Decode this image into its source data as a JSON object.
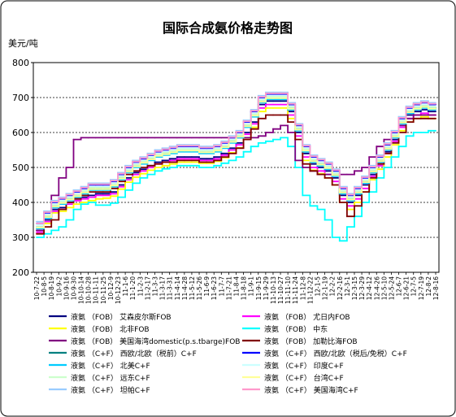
{
  "chart_data": {
    "type": "line",
    "title": "国际合成氨价格走势图",
    "ylabel": "美元/吨",
    "xlabel": "",
    "ylim": [
      200,
      800
    ],
    "yticks": [
      200,
      300,
      400,
      500,
      600,
      700,
      800
    ],
    "grid": "horizontal-dashed",
    "legend_placement": "bottom",
    "x": [
      "10-7-22",
      "10-8-5",
      "10-8-19",
      "10-9-2",
      "10-9-16",
      "10-9-30",
      "10-10-14",
      "10-10-28",
      "10-11-11",
      "10-11-25",
      "10-12-9",
      "10-12-23",
      "11-1-6",
      "11-1-20",
      "11-2-3",
      "11-2-17",
      "11-3-3",
      "11-3-17",
      "11-3-31",
      "11-4-14",
      "11-4-28",
      "11-5-12",
      "11-5-26",
      "11-6-9",
      "11-6-23",
      "11-7-7",
      "11-7-21",
      "11-8-4",
      "11-8-18",
      "11-9-1",
      "11-9-15",
      "11-9-29",
      "11-10-13",
      "11-10-27",
      "11-11-10",
      "11-11-24",
      "11-12-8",
      "11-12-22",
      "12-1-5",
      "12-1-19",
      "12-2-2",
      "12-2-16",
      "12-3-1",
      "12-3-15",
      "12-3-29",
      "12-4-12",
      "12-4-26",
      "12-5-10",
      "12-5-24",
      "12-6-7",
      "12-6-21",
      "12-7-5",
      "12-7-19",
      "12-8-2",
      "12-8-16"
    ],
    "x_tick_labels": [
      "10-7-22",
      "10-8-5",
      "10-8-19",
      "10-9-2",
      "10-9-16",
      "10-9-30",
      "10-10-14",
      "10-10-28",
      "10-11-11",
      "10-11-25",
      "10-12-9",
      "10-12-23",
      "11-1-6",
      "11-1-20",
      "11-2-3",
      "11-2-17",
      "11-3-3",
      "11-3-17",
      "11-3-31",
      "11-4-14",
      "11-4-28",
      "11-5-12",
      "11-5-26",
      "11-6-9",
      "11-6-23",
      "11-7-7",
      "11-7-21",
      "11-8-4",
      "11-8-18",
      "11-9-1",
      "11-9-15",
      "11-9-29",
      "11-10-13",
      "11-10-27",
      "11-11-10",
      "11-11-24",
      "11-12-8",
      "11-12-22",
      "12-1-5",
      "12-1-19",
      "12-2-2",
      "12-2-16",
      "12-3-1",
      "12-3-15",
      "12-3-29",
      "12-4-12",
      "12-4-26",
      "12-5-10",
      "12-5-24",
      "12-6-7",
      "12-6-21",
      "12-7-5",
      "12-7-19",
      "12-8-2",
      "12-8-16"
    ],
    "series": [
      {
        "name": "液氨 （FOB） 艾森皮尔斯FOB",
        "color": "#000080",
        "values": [
          320,
          350,
          380,
          385,
          400,
          410,
          415,
          420,
          425,
          425,
          430,
          450,
          470,
          485,
          495,
          505,
          515,
          520,
          525,
          530,
          530,
          530,
          525,
          525,
          530,
          540,
          555,
          570,
          600,
          630,
          680,
          690,
          690,
          690,
          660,
          600,
          540,
          510,
          500,
          490,
          470,
          420,
          400,
          420,
          450,
          480,
          510,
          545,
          580,
          620,
          650,
          660,
          665,
          660,
          660
        ]
      },
      {
        "name": "液氨 （FOB） 尤日内FOB",
        "color": "#ff00ff",
        "values": [
          315,
          345,
          375,
          380,
          395,
          405,
          410,
          415,
          420,
          420,
          425,
          445,
          465,
          480,
          490,
          500,
          510,
          515,
          520,
          525,
          525,
          525,
          520,
          520,
          525,
          535,
          550,
          565,
          595,
          625,
          670,
          680,
          680,
          680,
          650,
          590,
          530,
          500,
          490,
          480,
          460,
          410,
          390,
          410,
          440,
          475,
          505,
          540,
          575,
          615,
          640,
          650,
          655,
          650,
          650
        ]
      },
      {
        "name": "液氨 （FOB） 北非FOB",
        "color": "#ffff00",
        "values": [
          310,
          340,
          370,
          375,
          385,
          395,
          400,
          405,
          410,
          412,
          418,
          438,
          458,
          472,
          482,
          492,
          500,
          505,
          510,
          515,
          515,
          515,
          512,
          512,
          518,
          528,
          542,
          556,
          585,
          615,
          660,
          670,
          670,
          670,
          640,
          580,
          520,
          492,
          482,
          470,
          450,
          400,
          380,
          400,
          430,
          465,
          495,
          530,
          565,
          605,
          630,
          640,
          645,
          640,
          640
        ]
      },
      {
        "name": "液氨 （FOB） 中东",
        "color": "#00ffff",
        "values": [
          300,
          310,
          320,
          330,
          350,
          380,
          395,
          400,
          392,
          392,
          398,
          415,
          435,
          455,
          470,
          480,
          490,
          496,
          500,
          505,
          505,
          505,
          500,
          500,
          505,
          512,
          520,
          530,
          545,
          560,
          570,
          575,
          580,
          585,
          560,
          500,
          420,
          390,
          380,
          350,
          300,
          290,
          330,
          360,
          400,
          430,
          470,
          500,
          530,
          560,
          590,
          600,
          600,
          605,
          605
        ]
      },
      {
        "name": "液氨 （FOB） 美国海湾domestic(p.s.tbarge)FOB",
        "color": "#800080",
        "values": [
          320,
          360,
          420,
          470,
          500,
          580,
          585,
          585,
          585,
          585,
          585,
          585,
          585,
          585,
          585,
          585,
          585,
          585,
          585,
          585,
          585,
          585,
          585,
          585,
          585,
          585,
          585,
          585,
          585,
          585,
          590,
          600,
          610,
          620,
          600,
          520,
          500,
          490,
          480,
          480,
          480,
          480,
          480,
          490,
          500,
          530,
          560,
          580,
          600,
          620,
          640,
          650,
          650,
          650,
          650
        ]
      },
      {
        "name": "液氨 （FOB） 加勒比海FOB",
        "color": "#800000",
        "values": [
          310,
          330,
          350,
          380,
          400,
          410,
          420,
          430,
          430,
          430,
          440,
          460,
          480,
          490,
          500,
          505,
          510,
          515,
          515,
          520,
          520,
          520,
          515,
          515,
          520,
          530,
          540,
          555,
          580,
          610,
          640,
          650,
          650,
          650,
          630,
          580,
          510,
          490,
          480,
          470,
          450,
          400,
          360,
          390,
          430,
          470,
          510,
          540,
          570,
          600,
          630,
          640,
          640,
          640,
          640
        ]
      },
      {
        "name": "液氨 （C+F） 西欧/北欧（税前）C+F",
        "color": "#008080",
        "values": [
          330,
          360,
          390,
          400,
          410,
          420,
          430,
          440,
          440,
          440,
          450,
          470,
          490,
          505,
          515,
          525,
          535,
          540,
          545,
          550,
          550,
          550,
          545,
          545,
          550,
          560,
          575,
          590,
          620,
          650,
          690,
          700,
          700,
          700,
          670,
          610,
          550,
          520,
          510,
          500,
          480,
          430,
          410,
          430,
          460,
          490,
          520,
          555,
          590,
          630,
          660,
          670,
          675,
          670,
          670
        ]
      },
      {
        "name": "液氨 （C+F） 西欧/北欧（税后/免税）C+F",
        "color": "#0000ff",
        "values": [
          340,
          370,
          400,
          410,
          420,
          430,
          440,
          450,
          450,
          450,
          460,
          480,
          500,
          515,
          525,
          535,
          545,
          550,
          555,
          560,
          560,
          560,
          555,
          555,
          560,
          570,
          585,
          600,
          630,
          660,
          700,
          710,
          710,
          710,
          680,
          620,
          560,
          530,
          520,
          510,
          490,
          440,
          420,
          440,
          470,
          500,
          530,
          565,
          600,
          640,
          670,
          680,
          685,
          680,
          680
        ]
      },
      {
        "name": "液氨 （C+F） 北美C+F",
        "color": "#00ccff",
        "values": [
          325,
          355,
          385,
          395,
          405,
          415,
          425,
          435,
          435,
          435,
          445,
          465,
          485,
          500,
          510,
          520,
          530,
          535,
          540,
          545,
          545,
          545,
          540,
          540,
          545,
          555,
          570,
          585,
          615,
          645,
          685,
          695,
          695,
          695,
          665,
          605,
          545,
          515,
          505,
          495,
          475,
          425,
          405,
          425,
          455,
          485,
          515,
          550,
          585,
          625,
          655,
          665,
          670,
          665,
          665
        ]
      },
      {
        "name": "液氨 （C+F） 印度C+F",
        "color": "#ccffff",
        "values": [
          335,
          365,
          395,
          405,
          415,
          425,
          435,
          445,
          445,
          445,
          455,
          475,
          495,
          510,
          520,
          530,
          540,
          545,
          550,
          555,
          555,
          555,
          550,
          550,
          555,
          565,
          580,
          595,
          625,
          655,
          695,
          705,
          705,
          705,
          675,
          615,
          555,
          525,
          515,
          505,
          485,
          435,
          415,
          435,
          465,
          495,
          525,
          560,
          595,
          635,
          665,
          675,
          680,
          675,
          675
        ]
      },
      {
        "name": "液氨 （C+F） 远东C+F",
        "color": "#ccffcc",
        "values": [
          330,
          362,
          392,
          402,
          412,
          422,
          432,
          442,
          442,
          442,
          452,
          472,
          492,
          507,
          517,
          527,
          537,
          542,
          547,
          552,
          552,
          552,
          547,
          547,
          552,
          562,
          577,
          592,
          622,
          652,
          692,
          702,
          702,
          702,
          672,
          612,
          552,
          522,
          512,
          502,
          482,
          432,
          412,
          432,
          462,
          492,
          522,
          557,
          592,
          632,
          662,
          672,
          677,
          672,
          672
        ]
      },
      {
        "name": "液氨 （C+F） 台湾C+F",
        "color": "#ffff99",
        "values": [
          328,
          358,
          388,
          398,
          408,
          418,
          428,
          438,
          438,
          438,
          448,
          468,
          488,
          503,
          513,
          523,
          533,
          538,
          543,
          548,
          548,
          548,
          543,
          543,
          548,
          558,
          573,
          588,
          618,
          648,
          688,
          698,
          698,
          698,
          668,
          608,
          548,
          518,
          508,
          498,
          478,
          428,
          408,
          428,
          458,
          488,
          518,
          553,
          588,
          628,
          658,
          668,
          673,
          668,
          668
        ]
      },
      {
        "name": "液氨 （C+F） 坦帕C+F",
        "color": "#99ccff",
        "values": [
          345,
          375,
          405,
          415,
          425,
          435,
          445,
          455,
          455,
          455,
          465,
          485,
          505,
          520,
          530,
          540,
          550,
          555,
          560,
          565,
          565,
          565,
          560,
          560,
          565,
          575,
          590,
          605,
          635,
          665,
          705,
          715,
          715,
          715,
          685,
          625,
          565,
          535,
          525,
          515,
          495,
          445,
          425,
          445,
          475,
          505,
          535,
          570,
          605,
          645,
          675,
          685,
          690,
          685,
          685
        ]
      },
      {
        "name": "液氨 （C+F） 美国海湾C+F",
        "color": "#ff99cc",
        "values": [
          340,
          372,
          402,
          412,
          422,
          432,
          442,
          452,
          452,
          452,
          462,
          482,
          502,
          517,
          527,
          537,
          547,
          552,
          557,
          562,
          562,
          562,
          557,
          557,
          562,
          572,
          587,
          602,
          632,
          662,
          702,
          712,
          712,
          712,
          682,
          622,
          562,
          532,
          522,
          512,
          492,
          442,
          422,
          442,
          472,
          502,
          532,
          567,
          602,
          642,
          672,
          682,
          687,
          682,
          682
        ]
      }
    ]
  }
}
